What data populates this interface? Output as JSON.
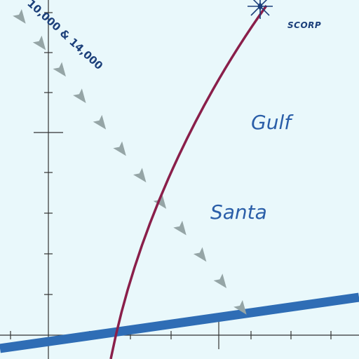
{
  "map": {
    "background_color": "#e9f8fb",
    "route_label": "10,000 & 14,000",
    "fix": {
      "label": "SCORP",
      "icon": "waypoint-star-icon"
    },
    "water_labels": [
      "Gulf",
      "Santa"
    ],
    "colors": {
      "airway_blue": "#2f6db5",
      "curve_maroon": "#8a1f4a",
      "route_arrows": "#95a5a6",
      "grid_ticks": "#333333",
      "text": "#1b3f7a"
    }
  }
}
